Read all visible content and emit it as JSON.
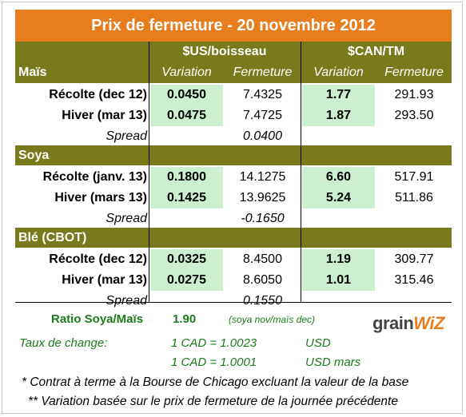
{
  "title": "Prix de fermeture - 20 novembre 2012",
  "headers": {
    "us_group": "$US/boisseau",
    "can_group": "$CAN/TM",
    "variation": "Variation",
    "fermeture": "Fermeture"
  },
  "sections": [
    {
      "name": "Maïs",
      "rows": [
        {
          "label": "Récolte (dec 12)",
          "us_var": "0.0450",
          "us_ferm": "7.4325",
          "can_var": "1.77",
          "can_ferm": "291.93"
        },
        {
          "label": "Hiver (mar 13)",
          "us_var": "0.0475",
          "us_ferm": "7.4725",
          "can_var": "1.87",
          "can_ferm": "293.50"
        }
      ],
      "spread_label": "Spread",
      "spread": "0.0400"
    },
    {
      "name": "Soya",
      "rows": [
        {
          "label": "Récolte (janv. 13)",
          "us_var": "0.1800",
          "us_ferm": "14.1275",
          "can_var": "6.60",
          "can_ferm": "517.91"
        },
        {
          "label": "Hiver (mars 13)",
          "us_var": "0.1425",
          "us_ferm": "13.9625",
          "can_var": "5.24",
          "can_ferm": "511.86"
        }
      ],
      "spread_label": "Spread",
      "spread": "-0.1650"
    },
    {
      "name": "Blé (CBOT)",
      "rows": [
        {
          "label": "Récolte (dec 12)",
          "us_var": "0.0325",
          "us_ferm": "8.4500",
          "can_var": "1.19",
          "can_ferm": "309.77"
        },
        {
          "label": "Hiver (mar 13)",
          "us_var": "0.0275",
          "us_ferm": "8.6050",
          "can_var": "1.01",
          "can_ferm": "315.46"
        }
      ],
      "spread_label": "Spread",
      "spread": "0.1550"
    }
  ],
  "ratio": {
    "label": "Ratio Soya/Maïs",
    "value": "1.90",
    "note": "(soya nov/maïs dec)"
  },
  "exchange": {
    "label": "Taux de change:",
    "rate1": "1 CAD =  1.0023",
    "unit1": "USD",
    "rate2": "1 CAD =  1.0001",
    "unit2": "USD mars"
  },
  "logo": {
    "part1": "grain",
    "part2": "WiZ"
  },
  "footnotes": [
    "* Contrat à terme à la Bourse de Chicago excluant la valeur de la base",
    "** Variation basée sur le prix de fermeture de la journée précédente"
  ],
  "colors": {
    "title_bg": "#e87d1e",
    "header_bg": "#7a7a1c",
    "highlight": "#ccefd0",
    "footer_text": "#1d7a1d"
  }
}
